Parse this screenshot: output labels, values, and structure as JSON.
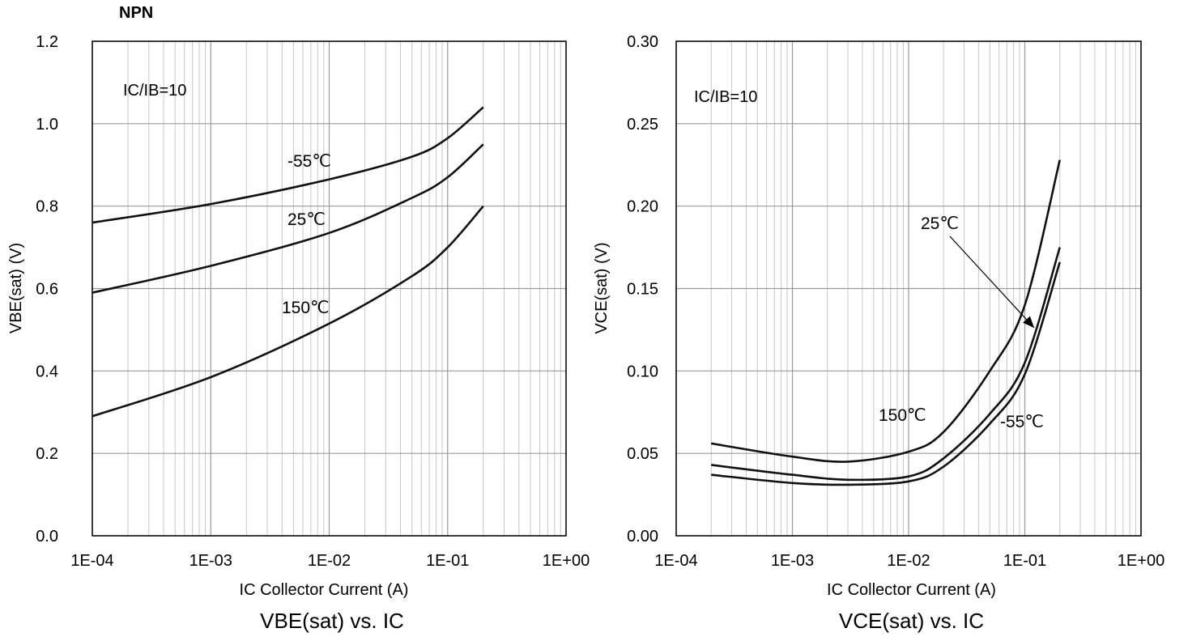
{
  "header": {
    "title": "NPN"
  },
  "chart_data": [
    {
      "type": "line",
      "title": "VBE(sat) vs. IC",
      "xlabel": "IC Collector Current (A)",
      "ylabel": "VBE(sat) (V)",
      "xscale": "log",
      "xlim": [
        0.0001,
        1
      ],
      "ylim": [
        0,
        1.2
      ],
      "x_ticks": [
        "1E-04",
        "1E-03",
        "1E-02",
        "1E-01",
        "1E+00"
      ],
      "y_ticks": [
        "0.0",
        "0.2",
        "0.4",
        "0.6",
        "0.8",
        "1.0",
        "1.2"
      ],
      "grid": true,
      "condition": "IC/IB=10",
      "series": [
        {
          "name": "-55℃",
          "x": [
            0.0001,
            0.001,
            0.01,
            0.05,
            0.1,
            0.2
          ],
          "y": [
            0.76,
            0.805,
            0.865,
            0.92,
            0.965,
            1.04
          ]
        },
        {
          "name": "25℃",
          "x": [
            0.0001,
            0.001,
            0.01,
            0.05,
            0.1,
            0.2
          ],
          "y": [
            0.59,
            0.655,
            0.735,
            0.82,
            0.87,
            0.95
          ]
        },
        {
          "name": "150℃",
          "x": [
            0.0001,
            0.001,
            0.01,
            0.05,
            0.1,
            0.2
          ],
          "y": [
            0.29,
            0.385,
            0.515,
            0.63,
            0.7,
            0.8
          ]
        }
      ]
    },
    {
      "type": "line",
      "title": "VCE(sat) vs. IC",
      "xlabel": "IC Collector Current (A)",
      "ylabel": "VCE(sat) (V)",
      "xscale": "log",
      "xlim": [
        0.0001,
        1
      ],
      "ylim": [
        0,
        0.3
      ],
      "x_ticks": [
        "1E-04",
        "1E-03",
        "1E-02",
        "1E-01",
        "1E+00"
      ],
      "y_ticks": [
        "0.00",
        "0.05",
        "0.10",
        "0.15",
        "0.20",
        "0.25",
        "0.30"
      ],
      "grid": true,
      "condition": "IC/IB=10",
      "series": [
        {
          "name": "150℃",
          "x": [
            0.0002,
            0.001,
            0.003,
            0.01,
            0.02,
            0.05,
            0.1,
            0.2
          ],
          "y": [
            0.056,
            0.048,
            0.045,
            0.051,
            0.063,
            0.1,
            0.14,
            0.228
          ]
        },
        {
          "name": "25℃",
          "x": [
            0.0002,
            0.001,
            0.003,
            0.01,
            0.02,
            0.05,
            0.1,
            0.2
          ],
          "y": [
            0.043,
            0.037,
            0.034,
            0.036,
            0.047,
            0.074,
            0.105,
            0.175
          ]
        },
        {
          "name": "-55℃",
          "x": [
            0.0002,
            0.001,
            0.003,
            0.01,
            0.02,
            0.05,
            0.1,
            0.2
          ],
          "y": [
            0.037,
            0.032,
            0.031,
            0.033,
            0.042,
            0.068,
            0.098,
            0.166
          ]
        }
      ]
    }
  ]
}
